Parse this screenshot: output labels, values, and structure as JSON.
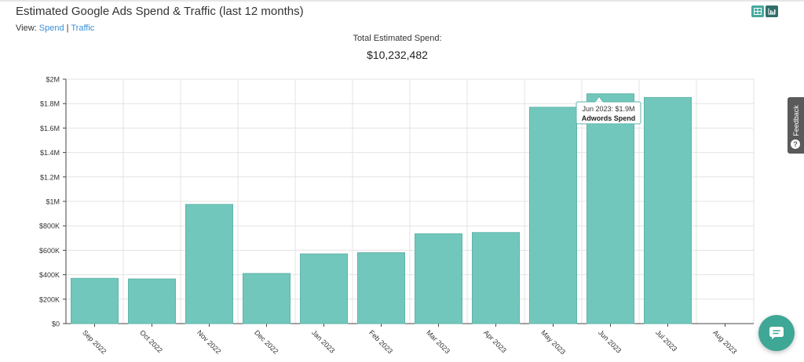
{
  "header": {
    "title": "Estimated Google Ads Spend & Traffic (last 12 months)",
    "view_prefix": "View:",
    "view_spend": "Spend",
    "view_separator": "|",
    "view_traffic": "Traffic",
    "icons": [
      "table-view-icon",
      "chart-view-icon"
    ]
  },
  "summary": {
    "label": "Total Estimated Spend:",
    "value": "$10,232,482"
  },
  "tooltip": {
    "line1": "Jun 2023: $1.9M",
    "line2": "Adwords Spend"
  },
  "feedback": {
    "label": "Feedback",
    "icon": "?"
  },
  "colors": {
    "bar": "#72c7bc",
    "bar_stroke": "#5fb3a8",
    "link": "#3a8fd8",
    "chat": "#3fa796"
  },
  "chart_data": {
    "type": "bar",
    "categories": [
      "Sep 2022",
      "Oct 2022",
      "Nov 2022",
      "Dec 2022",
      "Jan 2023",
      "Feb 2023",
      "Mar 2023",
      "Apr 2023",
      "May 2023",
      "Jun 2023",
      "Jul 2023",
      "Aug 2023"
    ],
    "series": [
      {
        "values": [
          370000,
          365000,
          975000,
          410000,
          570000,
          580000,
          735000,
          745000,
          1770000,
          1880000,
          1850000,
          0
        ]
      }
    ],
    "ylim": [
      0,
      2000000
    ],
    "yticks": [
      0,
      200000,
      400000,
      600000,
      800000,
      1000000,
      1200000,
      1400000,
      1600000,
      1800000,
      2000000
    ],
    "ytick_labels": [
      "$0",
      "$200K",
      "$400K",
      "$600K",
      "$800K",
      "$1M",
      "$1.2M",
      "$1.4M",
      "$1.6M",
      "$1.8M",
      "$2M"
    ],
    "grid": true,
    "legend": "none"
  }
}
